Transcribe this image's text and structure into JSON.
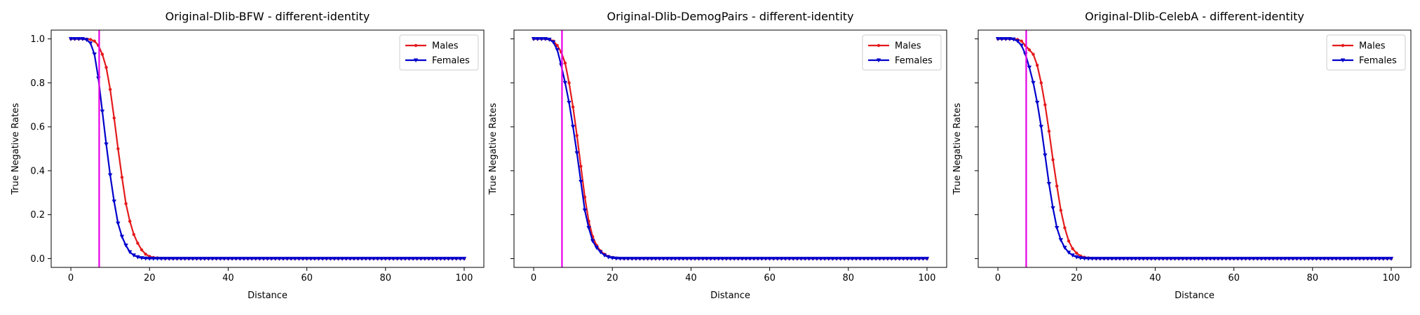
{
  "chart_data": [
    {
      "type": "line",
      "title": "Original-Dlib-BFW - different-identity",
      "xlabel": "Distance",
      "ylabel": "True Negative Rates",
      "xlim": [
        -5,
        105
      ],
      "ylim": [
        -0.04,
        1.04
      ],
      "xticks": [
        "0",
        "20",
        "40",
        "60",
        "80",
        "100"
      ],
      "yticks": [
        "0.0",
        "0.2",
        "0.4",
        "0.6",
        "0.8",
        "1.0"
      ],
      "show_ytick_labels": true,
      "threshold_x": 7.2,
      "legend": "top-right",
      "grid": false,
      "x": [
        0,
        1,
        2,
        3,
        4,
        5,
        6,
        7,
        8,
        9,
        10,
        11,
        12,
        13,
        14,
        15,
        16,
        17,
        18,
        19,
        20,
        21,
        22,
        23,
        24,
        25,
        26,
        27,
        28,
        29,
        30,
        31,
        32,
        33,
        34,
        35,
        36,
        37,
        38,
        39,
        40,
        41,
        42,
        43,
        44,
        45,
        46,
        47,
        48,
        49,
        50,
        51,
        52,
        53,
        54,
        55,
        56,
        57,
        58,
        59,
        60,
        61,
        62,
        63,
        64,
        65,
        66,
        67,
        68,
        69,
        70,
        71,
        72,
        73,
        74,
        75,
        76,
        77,
        78,
        79,
        80,
        81,
        82,
        83,
        84,
        85,
        86,
        87,
        88,
        89,
        90,
        91,
        92,
        93,
        94,
        95,
        96,
        97,
        98,
        99,
        100
      ],
      "series": [
        {
          "name": "Males",
          "color": "#e41a1c",
          "marker": "circle",
          "values": [
            1,
            1,
            1,
            1,
            0.999,
            0.997,
            0.99,
            0.97,
            0.93,
            0.87,
            0.77,
            0.64,
            0.5,
            0.37,
            0.25,
            0.17,
            0.11,
            0.07,
            0.04,
            0.02,
            0.01,
            0.005,
            0.003,
            0.001,
            0,
            0,
            0,
            0,
            0,
            0,
            0,
            0,
            0,
            0,
            0,
            0,
            0,
            0,
            0,
            0,
            0,
            0,
            0,
            0,
            0,
            0,
            0,
            0,
            0,
            0,
            0,
            0,
            0,
            0,
            0,
            0,
            0,
            0,
            0,
            0,
            0,
            0,
            0,
            0,
            0,
            0,
            0,
            0,
            0,
            0,
            0,
            0,
            0,
            0,
            0,
            0,
            0,
            0,
            0,
            0,
            0,
            0,
            0,
            0,
            0,
            0,
            0,
            0,
            0,
            0,
            0,
            0,
            0,
            0,
            0,
            0,
            0,
            0,
            0,
            0,
            0
          ]
        },
        {
          "name": "Females",
          "color": "#0000cc",
          "marker": "triangle-down",
          "values": [
            1,
            1,
            1,
            1,
            0.996,
            0.98,
            0.93,
            0.82,
            0.67,
            0.52,
            0.38,
            0.26,
            0.16,
            0.1,
            0.06,
            0.03,
            0.015,
            0.007,
            0.003,
            0.001,
            0,
            0,
            0,
            0,
            0,
            0,
            0,
            0,
            0,
            0,
            0,
            0,
            0,
            0,
            0,
            0,
            0,
            0,
            0,
            0,
            0,
            0,
            0,
            0,
            0,
            0,
            0,
            0,
            0,
            0,
            0,
            0,
            0,
            0,
            0,
            0,
            0,
            0,
            0,
            0,
            0,
            0,
            0,
            0,
            0,
            0,
            0,
            0,
            0,
            0,
            0,
            0,
            0,
            0,
            0,
            0,
            0,
            0,
            0,
            0,
            0,
            0,
            0,
            0,
            0,
            0,
            0,
            0,
            0,
            0,
            0,
            0,
            0,
            0,
            0,
            0,
            0,
            0,
            0,
            0,
            0
          ]
        }
      ]
    },
    {
      "type": "line",
      "title": "Original-Dlib-DemogPairs - different-identity",
      "xlabel": "Distance",
      "ylabel": "True Negative Rates",
      "xlim": [
        -5,
        105
      ],
      "ylim": [
        -0.04,
        1.04
      ],
      "xticks": [
        "0",
        "20",
        "40",
        "60",
        "80",
        "100"
      ],
      "yticks": [
        "0.0",
        "0.2",
        "0.4",
        "0.6",
        "0.8",
        "1.0"
      ],
      "show_ytick_labels": false,
      "threshold_x": 7.2,
      "legend": "top-right",
      "grid": false,
      "x": [
        0,
        1,
        2,
        3,
        4,
        5,
        6,
        7,
        8,
        9,
        10,
        11,
        12,
        13,
        14,
        15,
        16,
        17,
        18,
        19,
        20,
        21,
        22,
        23,
        24,
        25,
        26,
        27,
        28,
        29,
        30,
        31,
        32,
        33,
        34,
        35,
        36,
        37,
        38,
        39,
        40,
        41,
        42,
        43,
        44,
        45,
        46,
        47,
        48,
        49,
        50,
        51,
        52,
        53,
        54,
        55,
        56,
        57,
        58,
        59,
        60,
        61,
        62,
        63,
        64,
        65,
        66,
        67,
        68,
        69,
        70,
        71,
        72,
        73,
        74,
        75,
        76,
        77,
        78,
        79,
        80,
        81,
        82,
        83,
        84,
        85,
        86,
        87,
        88,
        89,
        90,
        91,
        92,
        93,
        94,
        95,
        96,
        97,
        98,
        99,
        100
      ],
      "series": [
        {
          "name": "Males",
          "color": "#e41a1c",
          "marker": "circle",
          "values": [
            1,
            1,
            1,
            1,
            0.998,
            0.99,
            0.97,
            0.94,
            0.89,
            0.8,
            0.69,
            0.56,
            0.42,
            0.28,
            0.17,
            0.1,
            0.06,
            0.035,
            0.02,
            0.01,
            0.005,
            0.002,
            0.001,
            0,
            0,
            0,
            0,
            0,
            0,
            0,
            0,
            0,
            0,
            0,
            0,
            0,
            0,
            0,
            0,
            0,
            0,
            0,
            0,
            0,
            0,
            0,
            0,
            0,
            0,
            0,
            0,
            0,
            0,
            0,
            0,
            0,
            0,
            0,
            0,
            0,
            0,
            0,
            0,
            0,
            0,
            0,
            0,
            0,
            0,
            0,
            0,
            0,
            0,
            0,
            0,
            0,
            0,
            0,
            0,
            0,
            0,
            0,
            0,
            0,
            0,
            0,
            0,
            0,
            0,
            0,
            0,
            0,
            0,
            0,
            0,
            0,
            0,
            0,
            0,
            0,
            0
          ]
        },
        {
          "name": "Females",
          "color": "#0000cc",
          "marker": "triangle-down",
          "values": [
            1,
            1,
            1,
            1,
            0.997,
            0.985,
            0.95,
            0.88,
            0.8,
            0.71,
            0.6,
            0.48,
            0.35,
            0.22,
            0.14,
            0.08,
            0.05,
            0.03,
            0.015,
            0.007,
            0.003,
            0.001,
            0,
            0,
            0,
            0,
            0,
            0,
            0,
            0,
            0,
            0,
            0,
            0,
            0,
            0,
            0,
            0,
            0,
            0,
            0,
            0,
            0,
            0,
            0,
            0,
            0,
            0,
            0,
            0,
            0,
            0,
            0,
            0,
            0,
            0,
            0,
            0,
            0,
            0,
            0,
            0,
            0,
            0,
            0,
            0,
            0,
            0,
            0,
            0,
            0,
            0,
            0,
            0,
            0,
            0,
            0,
            0,
            0,
            0,
            0,
            0,
            0,
            0,
            0,
            0,
            0,
            0,
            0,
            0,
            0,
            0,
            0,
            0,
            0,
            0,
            0,
            0,
            0,
            0,
            0
          ]
        }
      ]
    },
    {
      "type": "line",
      "title": "Original-Dlib-CelebA - different-identity",
      "xlabel": "Distance",
      "ylabel": "True Negative Rates",
      "xlim": [
        -5,
        105
      ],
      "ylim": [
        -0.04,
        1.04
      ],
      "xticks": [
        "0",
        "20",
        "40",
        "60",
        "80",
        "100"
      ],
      "yticks": [
        "0.0",
        "0.2",
        "0.4",
        "0.6",
        "0.8",
        "1.0"
      ],
      "show_ytick_labels": false,
      "threshold_x": 7.2,
      "legend": "top-right",
      "grid": false,
      "x": [
        0,
        1,
        2,
        3,
        4,
        5,
        6,
        7,
        8,
        9,
        10,
        11,
        12,
        13,
        14,
        15,
        16,
        17,
        18,
        19,
        20,
        21,
        22,
        23,
        24,
        25,
        26,
        27,
        28,
        29,
        30,
        31,
        32,
        33,
        34,
        35,
        36,
        37,
        38,
        39,
        40,
        41,
        42,
        43,
        44,
        45,
        46,
        47,
        48,
        49,
        50,
        51,
        52,
        53,
        54,
        55,
        56,
        57,
        58,
        59,
        60,
        61,
        62,
        63,
        64,
        65,
        66,
        67,
        68,
        69,
        70,
        71,
        72,
        73,
        74,
        75,
        76,
        77,
        78,
        79,
        80,
        81,
        82,
        83,
        84,
        85,
        86,
        87,
        88,
        89,
        90,
        91,
        92,
        93,
        94,
        95,
        96,
        97,
        98,
        99,
        100
      ],
      "series": [
        {
          "name": "Males",
          "color": "#e41a1c",
          "marker": "circle",
          "values": [
            1,
            1,
            1,
            1,
            0.999,
            0.997,
            0.99,
            0.97,
            0.95,
            0.93,
            0.88,
            0.8,
            0.7,
            0.58,
            0.45,
            0.33,
            0.22,
            0.14,
            0.08,
            0.045,
            0.025,
            0.012,
            0.006,
            0.003,
            0.001,
            0,
            0,
            0,
            0,
            0,
            0,
            0,
            0,
            0,
            0,
            0,
            0,
            0,
            0,
            0,
            0,
            0,
            0,
            0,
            0,
            0,
            0,
            0,
            0,
            0,
            0,
            0,
            0,
            0,
            0,
            0,
            0,
            0,
            0,
            0,
            0,
            0,
            0,
            0,
            0,
            0,
            0,
            0,
            0,
            0,
            0,
            0,
            0,
            0,
            0,
            0,
            0,
            0,
            0,
            0,
            0,
            0,
            0,
            0,
            0,
            0,
            0,
            0,
            0,
            0,
            0,
            0,
            0,
            0,
            0,
            0,
            0,
            0,
            0,
            0,
            0
          ]
        },
        {
          "name": "Females",
          "color": "#0000cc",
          "marker": "triangle-down",
          "values": [
            1,
            1,
            1,
            1,
            0.998,
            0.99,
            0.97,
            0.93,
            0.87,
            0.8,
            0.71,
            0.6,
            0.47,
            0.34,
            0.23,
            0.14,
            0.085,
            0.05,
            0.028,
            0.015,
            0.007,
            0.003,
            0.001,
            0,
            0,
            0,
            0,
            0,
            0,
            0,
            0,
            0,
            0,
            0,
            0,
            0,
            0,
            0,
            0,
            0,
            0,
            0,
            0,
            0,
            0,
            0,
            0,
            0,
            0,
            0,
            0,
            0,
            0,
            0,
            0,
            0,
            0,
            0,
            0,
            0,
            0,
            0,
            0,
            0,
            0,
            0,
            0,
            0,
            0,
            0,
            0,
            0,
            0,
            0,
            0,
            0,
            0,
            0,
            0,
            0,
            0,
            0,
            0,
            0,
            0,
            0,
            0,
            0,
            0,
            0,
            0,
            0,
            0,
            0,
            0,
            0,
            0,
            0,
            0,
            0,
            0
          ]
        }
      ]
    }
  ]
}
